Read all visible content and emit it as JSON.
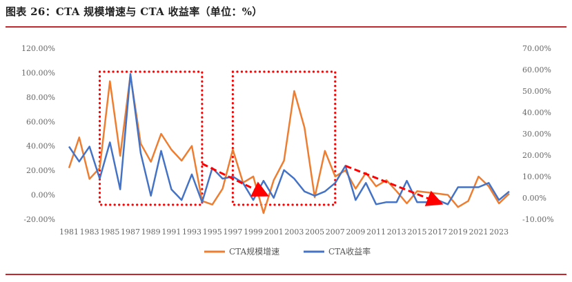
{
  "figure": {
    "title": "图表 26：CTA 规模增速与 CTA 收益率（单位：%）"
  },
  "chart_data": {
    "type": "line",
    "title": "",
    "categories": [
      "1981",
      "1982",
      "1983",
      "1984",
      "1985",
      "1986",
      "1987",
      "1988",
      "1989",
      "1990",
      "1991",
      "1992",
      "1993",
      "1994",
      "1995",
      "1996",
      "1997",
      "1998",
      "1999",
      "2000",
      "2001",
      "2002",
      "2003",
      "2004",
      "2005",
      "2006",
      "2007",
      "2008",
      "2009",
      "2010",
      "2011",
      "2012",
      "2013",
      "2014",
      "2015",
      "2016",
      "2017",
      "2018",
      "2019",
      "2020",
      "2021",
      "2022",
      "2023",
      "2024"
    ],
    "x_tick_labels": [
      "1981",
      "1983",
      "1985",
      "1987",
      "1989",
      "1991",
      "1993",
      "1995",
      "1997",
      "1999",
      "2001",
      "2003",
      "2005",
      "2007",
      "2009",
      "2011",
      "2013",
      "2015",
      "2017",
      "2019",
      "2021",
      "2023"
    ],
    "left_axis": {
      "ylim": [
        -20,
        120
      ],
      "ticks": [
        "-20.00%",
        "0.00%",
        "20.00%",
        "40.00%",
        "60.00%",
        "80.00%",
        "100.00%",
        "120.00%"
      ]
    },
    "right_axis": {
      "ylim": [
        -10,
        70
      ],
      "ticks": [
        "-10.00%",
        "0.00%",
        "10.00%",
        "20.00%",
        "30.00%",
        "40.00%",
        "50.00%",
        "60.00%",
        "70.00%"
      ]
    },
    "series": [
      {
        "name": "CTA规模增速",
        "axis": "left",
        "color": "#ED7D31",
        "values": [
          22,
          47,
          13,
          22,
          93,
          32,
          98,
          42,
          27,
          50,
          37,
          28,
          40,
          -5,
          -8,
          5,
          37,
          10,
          15,
          -15,
          12,
          28,
          85,
          55,
          -2,
          36,
          15,
          20,
          5,
          18,
          7,
          12,
          3,
          -7,
          3,
          2,
          1,
          0,
          -10,
          -5,
          15,
          7,
          -7,
          1
        ],
        "line_width": 2.5
      },
      {
        "name": "CTA收益率",
        "axis": "right",
        "color": "#4472C4",
        "values": [
          24,
          17,
          24,
          9,
          26,
          4,
          58,
          21,
          1,
          22,
          4,
          -1,
          11,
          -2,
          14,
          9,
          10,
          7,
          -1,
          8,
          0,
          13,
          9,
          3,
          1,
          3,
          7,
          15,
          -1,
          7,
          -3,
          -2,
          -2,
          8,
          -2,
          -2,
          -1,
          -3,
          5,
          5,
          5,
          7,
          -1,
          3
        ],
        "line_width": 2.5
      }
    ],
    "annotations": {
      "boxes": [
        {
          "from": "1984",
          "to": "1994",
          "color": "#FF0000",
          "style": "dotted"
        },
        {
          "from": "1997",
          "to": "2007",
          "color": "#FF0000",
          "style": "dotted"
        }
      ],
      "trend_arrows": [
        {
          "from_x": "1994",
          "from_y": 16,
          "to_x": "2000",
          "to_y": 2,
          "color": "#FF0000",
          "style": "dashed"
        },
        {
          "from_x": "2008",
          "from_y": 15,
          "to_x": "2017",
          "to_y": -2,
          "color": "#FF0000",
          "style": "dashed"
        }
      ]
    },
    "legend": {
      "position": "bottom-center"
    },
    "grid": false
  }
}
